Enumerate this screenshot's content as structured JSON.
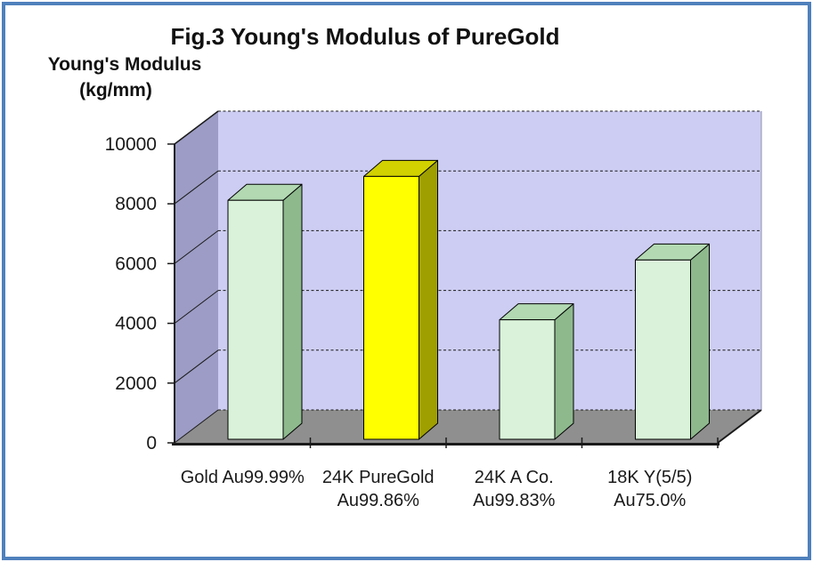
{
  "figure": {
    "title": "Fig.3 Young's Modulus of PureGold",
    "y_axis_title_line1": "Young's Modulus",
    "y_axis_title_line2": "(kg/mm)"
  },
  "chart_data": {
    "type": "bar",
    "projection": "3d-column",
    "title": "Fig.3 Young's Modulus of PureGold",
    "ylabel": "Young's Modulus (kg/mm)",
    "ylabel_line1": "Young's Modulus",
    "ylabel_line2": "(kg/mm)",
    "categories": [
      "Gold Au99.99%",
      "24K PureGold Au99.86%",
      "24K A Co. Au99.83%",
      "18K Y(5/5) Au75.0%"
    ],
    "category_label_lines": [
      [
        "Gold Au99.99%"
      ],
      [
        "24K PureGold",
        "Au99.86%"
      ],
      [
        "24K A Co.",
        "Au99.83%"
      ],
      [
        "18K Y(5/5)",
        "Au75.0%"
      ]
    ],
    "values": [
      8000,
      8800,
      4000,
      6000
    ],
    "ylim": [
      0,
      10000
    ],
    "ytick_step": 2000,
    "ytick_labels": [
      "0",
      "2000",
      "4000",
      "6000",
      "8000",
      "10000"
    ],
    "grid": "dashed-horizontal",
    "legend": "none",
    "highlighted_bar_index": 1,
    "bar_colors": [
      {
        "front": "#d9f2d9",
        "top": "#b2d9b2",
        "side": "#8db98d"
      },
      {
        "front": "#ffff00",
        "top": "#d2d200",
        "side": "#9f9f00"
      },
      {
        "front": "#d9f2d9",
        "top": "#b2d9b2",
        "side": "#8db98d"
      },
      {
        "front": "#d9f2d9",
        "top": "#b2d9b2",
        "side": "#8db98d"
      }
    ],
    "frame_colors": {
      "outer_border": "#4f81bd",
      "background": "#ffffff",
      "back_wall": "#cdcdf3",
      "left_wall": "#9c9cc6",
      "floor": "#8f8f8f",
      "wall_right_edge": "#8e8eae",
      "line": "#1a1a1a",
      "bar_outline": "#000000",
      "text": "#1a1a1a"
    }
  }
}
